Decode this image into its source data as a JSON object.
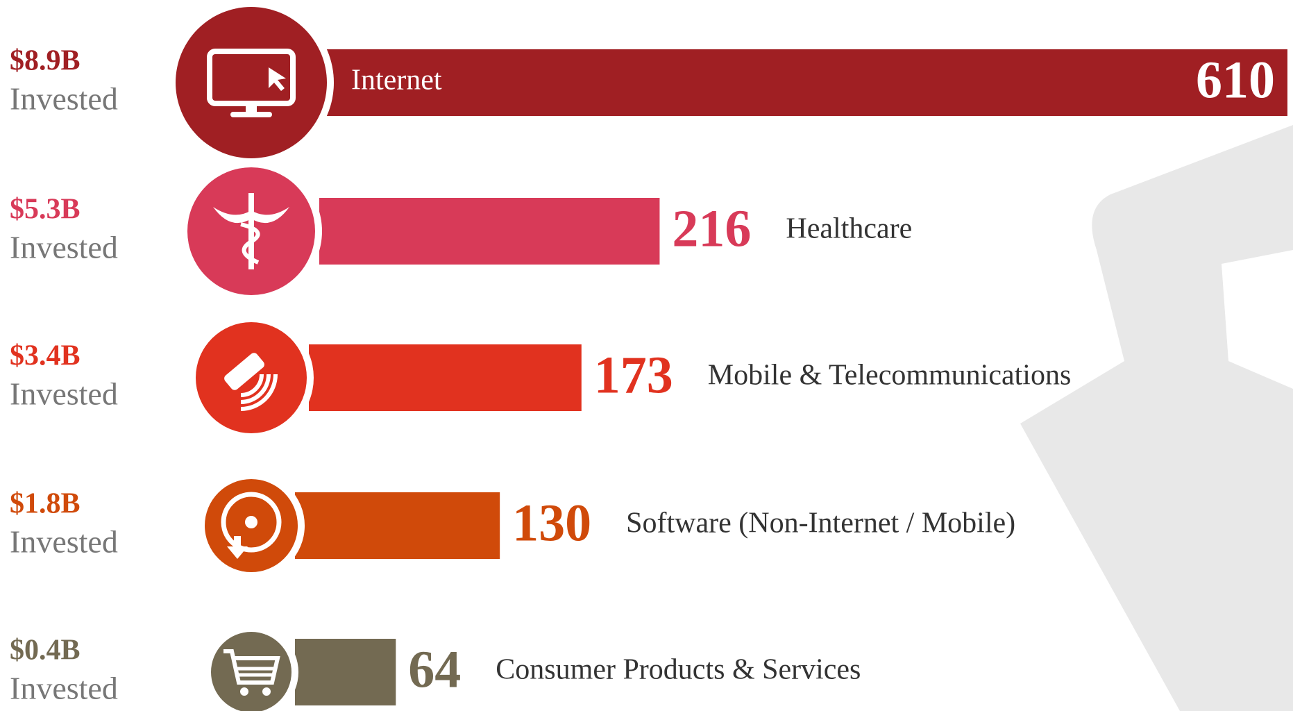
{
  "chart_data": {
    "type": "bar",
    "categories": [
      "Internet",
      "Healthcare",
      "Mobile & Telecommunications",
      "Software (Non-Internet / Mobile)",
      "Consumer Products & Services"
    ],
    "values": [
      610,
      216,
      173,
      130,
      64
    ],
    "colors": [
      "#a01f23",
      "#d83a58",
      "#e1321f",
      "#d04a0a",
      "#736a52"
    ],
    "invested_labels": [
      "$8.9B",
      "$5.3B",
      "$3.4B",
      "$1.8B",
      "$0.4B"
    ],
    "invested_text": "Invested"
  }
}
